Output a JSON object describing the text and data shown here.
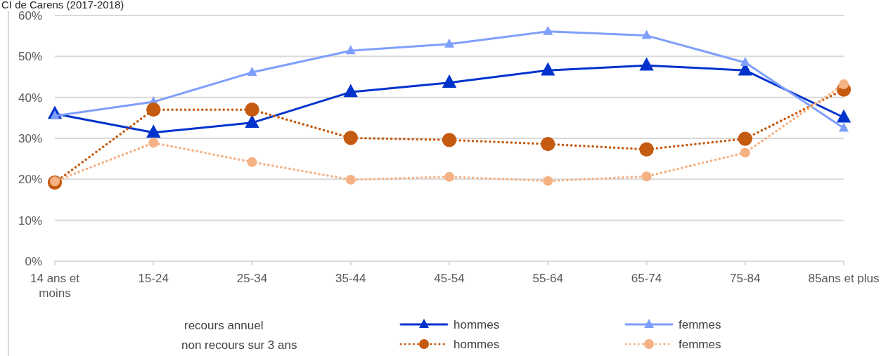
{
  "chart_data": {
    "type": "line",
    "title": "CI de Carens (2017-2018)",
    "categories": [
      "14 ans et moins",
      "15-24",
      "25-34",
      "35-44",
      "45-54",
      "55-64",
      "65-74",
      "75-84",
      "85ans et plus"
    ],
    "series": [
      {
        "name": "hommes",
        "color": "#0033cc",
        "marker": "triangle",
        "line_style": "solid",
        "values": [
          36.0,
          31.4,
          33.8,
          41.3,
          43.6,
          46.6,
          47.8,
          46.6,
          35.1
        ]
      },
      {
        "name": "femmes",
        "color": "#7f9ffc",
        "marker": "triangle",
        "line_style": "solid",
        "values": [
          35.5,
          38.9,
          46.1,
          51.4,
          53.0,
          56.1,
          55.1,
          48.5,
          32.5
        ]
      },
      {
        "name": "hommes",
        "color": "#c55a11",
        "marker": "circle",
        "line_style": "dotted",
        "values": [
          19.2,
          37.0,
          37.0,
          30.1,
          29.6,
          28.6,
          27.3,
          29.9,
          41.9
        ]
      },
      {
        "name": "femmes",
        "color": "#f4b183",
        "marker": "circle",
        "line_style": "dotted",
        "values": [
          19.5,
          28.9,
          24.2,
          19.9,
          20.6,
          19.6,
          20.7,
          26.5,
          43.2
        ]
      }
    ],
    "annotations": [
      "recours annuel",
      "non recours sur 3 ans"
    ],
    "ylim": [
      0,
      60
    ],
    "yticks": [
      {
        "value": 0,
        "label": "0%"
      },
      {
        "value": 10,
        "label": "10%"
      },
      {
        "value": 20,
        "label": "20%"
      },
      {
        "value": 30,
        "label": "30%"
      },
      {
        "value": 40,
        "label": "40%"
      },
      {
        "value": 50,
        "label": "50%"
      },
      {
        "value": 60,
        "label": "60%"
      }
    ],
    "grid": "y",
    "legend": "bottom"
  }
}
